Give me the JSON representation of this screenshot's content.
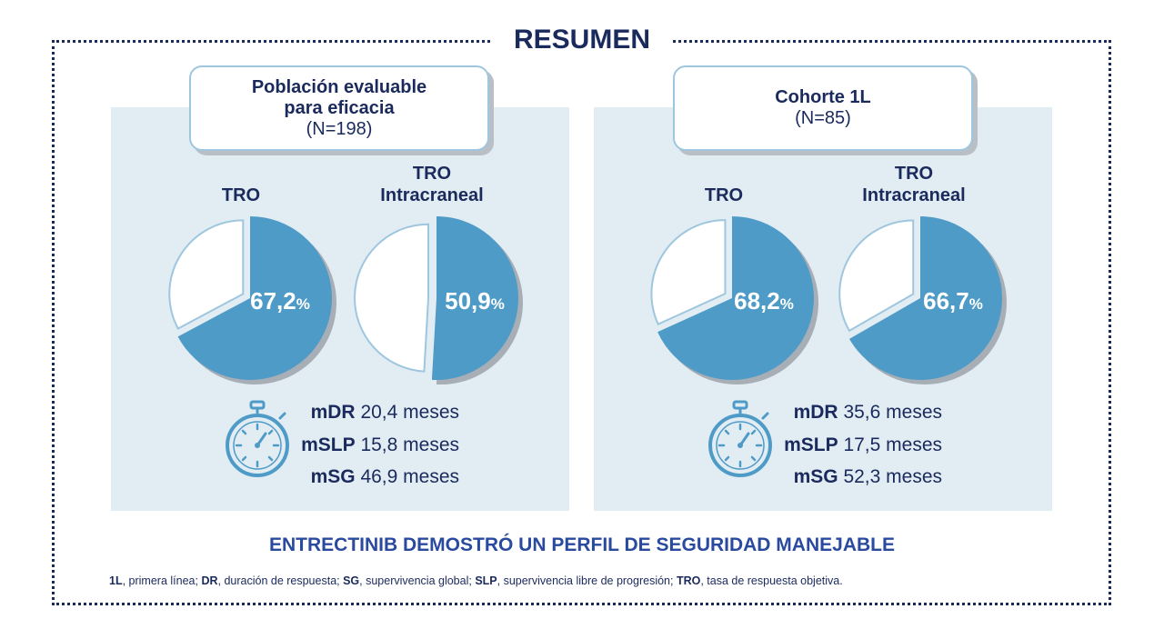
{
  "title": "RESUMEN",
  "colors": {
    "navy": "#1a2a5c",
    "pie_fill": "#4f9bc8",
    "panel_bg": "#e2ecf3",
    "border_blue": "#9ec7df"
  },
  "panels": [
    {
      "header_line1": "Población evaluable",
      "header_line2": "para eficacia",
      "header_n": "(N=198)",
      "pies": [
        {
          "label_line1": "TRO",
          "label_line2": "",
          "value": 67.2,
          "value_text": "67,2",
          "unit": "%"
        },
        {
          "label_line1": "TRO",
          "label_line2": "Intracraneal",
          "value": 50.9,
          "value_text": "50,9",
          "unit": "%"
        }
      ],
      "icon": "stopwatch-icon",
      "metrics": [
        {
          "key": "mDR",
          "value": "20,4 meses"
        },
        {
          "key": "mSLP",
          "value": "15,8 meses"
        },
        {
          "key": "mSG",
          "value": "46,9 meses"
        }
      ]
    },
    {
      "header_line1": "Cohorte 1L",
      "header_line2": "",
      "header_n": "(N=85)",
      "pies": [
        {
          "label_line1": "TRO",
          "label_line2": "",
          "value": 68.2,
          "value_text": "68,2",
          "unit": "%"
        },
        {
          "label_line1": "TRO",
          "label_line2": "Intracraneal",
          "value": 66.7,
          "value_text": "66,7",
          "unit": "%"
        }
      ],
      "icon": "stopwatch-icon",
      "metrics": [
        {
          "key": "mDR",
          "value": "35,6 meses"
        },
        {
          "key": "mSLP",
          "value": "17,5 meses"
        },
        {
          "key": "mSG",
          "value": "52,3 meses"
        }
      ]
    }
  ],
  "conclusion": "ENTRECTINIB DEMOSTRÓ UN PERFIL DE SEGURIDAD MANEJABLE",
  "footnote": [
    {
      "abbr": "1L",
      "text": ", primera línea; "
    },
    {
      "abbr": "DR",
      "text": ", duración de respuesta; "
    },
    {
      "abbr": "SG",
      "text": ", supervivencia global; "
    },
    {
      "abbr": "SLP",
      "text": ", supervivencia libre de progresión; "
    },
    {
      "abbr": "TRO",
      "text": ", tasa de respuesta objetiva."
    }
  ]
}
